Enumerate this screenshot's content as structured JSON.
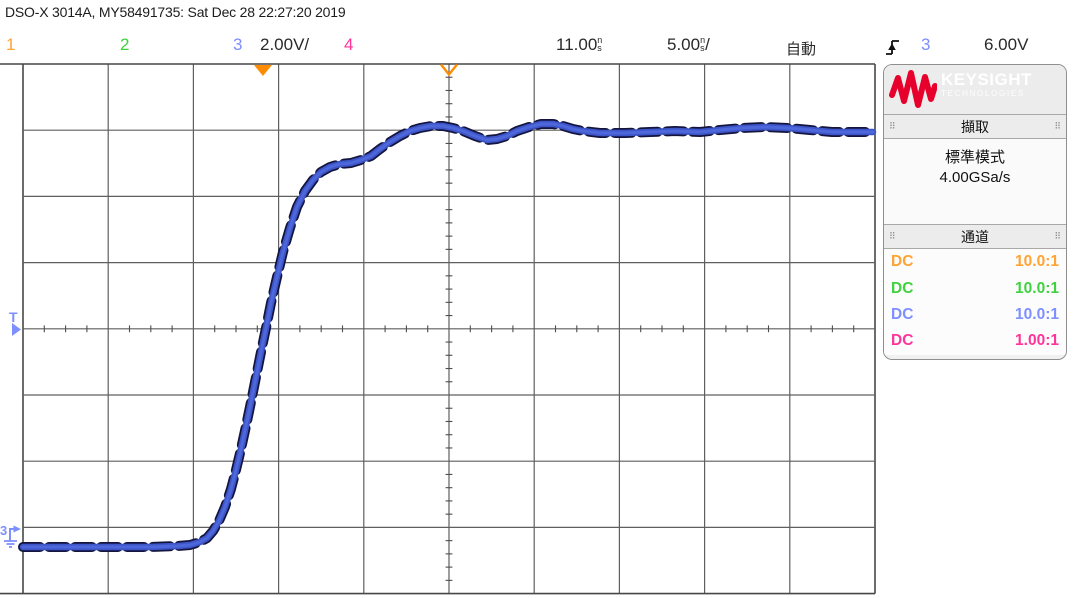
{
  "title_bar": {
    "text": "DSO-X 3014A, MY58491735: Sat Dec 28 22:27:20 2019"
  },
  "status_bar": {
    "ch1_label": "1",
    "ch2_label": "2",
    "ch3_label": "3",
    "ch3_scale": "2.00V/",
    "ch4_label": "4",
    "delay_value": "11.00",
    "delay_unit_top": "n",
    "delay_unit_bottom": "s",
    "timebase_value": "5.00",
    "timebase_unit_top": "n",
    "timebase_unit_bottom": "s",
    "timebase_slash": "/",
    "trigger_mode": "自動",
    "trigger_source": "3",
    "trigger_level": "6.00V"
  },
  "plot": {
    "trigger_level_label": "T",
    "ch3_ref_label": "3",
    "waveform_channel": "3",
    "waveform_desc": "rising step edge with overshoot and ringing, channel 3",
    "waveform_points": "23,547 100,547 150,547 178,546 190,545 200,542 207,538 213,531 219,521 225,507 231,489 236,470 241,449 246,426 251,402 256,377 261,352 266,328 271,303 277,277 283,252 290,228 297,207 305,191 313,180 321,172 330,167 340,164 351,163 361,160 371,156 380,149 390,142 400,136 410,131 420,128 431,126 443,126 453,128 463,131 475,136 487,140 497,139 507,136 517,131 529,127 541,124 553,124 563,126 573,129 583,131 600,133 625,133 650,132 675,131 700,132 720,130 742,128 765,127 788,128 810,130 832,132 852,132 873,132"
  },
  "side_panel": {
    "logo": {
      "brand": "KEYSIGHT",
      "subbrand": "TECHNOLOGIES"
    },
    "acquire": {
      "title": "擷取",
      "grip": "⠿",
      "mode": "標準模式",
      "sample_rate": "4.00GSa/s"
    },
    "channels": {
      "title": "通道",
      "grip": "⠿",
      "rows": [
        {
          "coupling": "DC",
          "probe_ratio": "10.0:1",
          "color": "#FFA333"
        },
        {
          "coupling": "DC",
          "probe_ratio": "10.0:1",
          "color": "#3FD23F"
        },
        {
          "coupling": "DC",
          "probe_ratio": "10.0:1",
          "color": "#7E8FFF"
        },
        {
          "coupling": "DC",
          "probe_ratio": "1.00:1",
          "color": "#FF3399"
        }
      ]
    }
  },
  "colors": {
    "ch1_orange": "#FFA333",
    "ch2_green": "#3FD23F",
    "ch3_blue": "#7E8FFF",
    "ch4_pink": "#FF3399",
    "trigger_marker_orange": "#FF8C00",
    "trace_blue": "#3C56C8",
    "keysight_red": "#E8002D",
    "grid_gray": "#5f5f5f"
  }
}
